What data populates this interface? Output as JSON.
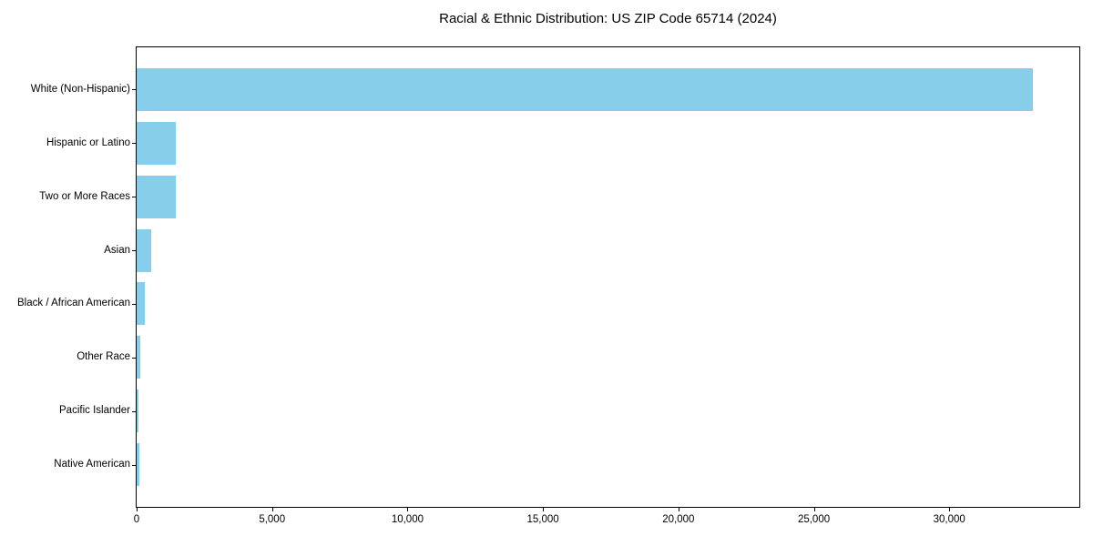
{
  "chart_data": {
    "type": "bar",
    "orientation": "horizontal",
    "title": "Racial & Ethnic Distribution: US ZIP Code 65714 (2024)",
    "categories": [
      "White (Non-Hispanic)",
      "Hispanic or Latino",
      "Two or More Races",
      "Asian",
      "Black / African American",
      "Other Race",
      "Pacific Islander",
      "Native American"
    ],
    "values": [
      33100,
      1440,
      1430,
      540,
      300,
      145,
      65,
      90
    ],
    "xlabel": "",
    "ylabel": "",
    "xlim": [
      0,
      34800
    ],
    "x_ticks": [
      0,
      5000,
      10000,
      15000,
      20000,
      25000,
      30000
    ],
    "x_tick_labels": [
      "0",
      "5,000",
      "10,000",
      "15,000",
      "20,000",
      "25,000",
      "30,000"
    ],
    "bar_color": "#87CEEB",
    "spine_color": "#000000",
    "text_color": "#000000",
    "grid": false,
    "legend": false
  }
}
